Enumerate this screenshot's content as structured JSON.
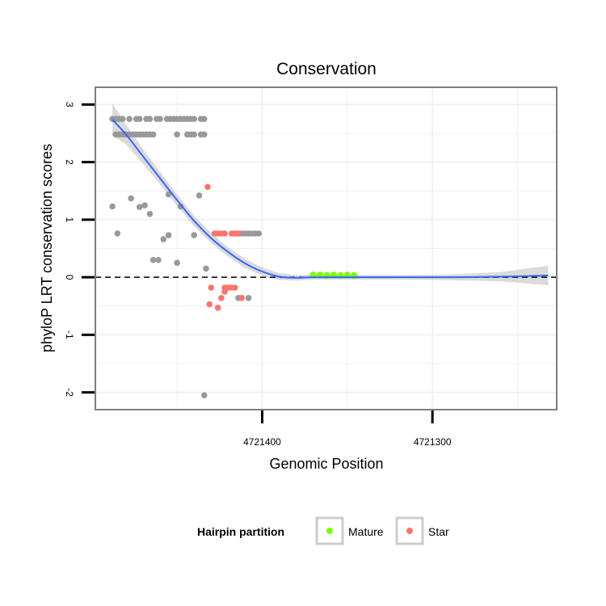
{
  "chart_data": {
    "type": "scatter",
    "title": "Conservation",
    "xlabel": "Genomic Position",
    "ylabel": "phyloP LRT conservation scores",
    "x_reversed": true,
    "xlim": [
      4721498,
      4721227
    ],
    "ylim": [
      -2.3,
      3.3
    ],
    "x_ticks": [
      4721400,
      4721300
    ],
    "x_tick_labels": [
      "4721400",
      "4721300"
    ],
    "y_ticks": [
      3,
      2,
      1,
      0,
      -1,
      -2
    ],
    "y_tick_labels": [
      "3",
      "2",
      "1",
      "0",
      "-1",
      "-2"
    ],
    "hline": {
      "y": 0,
      "style": "dashed",
      "color": "#000000"
    },
    "colors": {
      "other": "#999999",
      "Mature": "#7CFC00",
      "Star": "#F8766D",
      "smooth": "#3366FF",
      "ribbon": "#BDBDBD",
      "grid": "#F0F0F0",
      "panel_border": "#7F7F7F"
    },
    "legend": {
      "title": "Hairpin partition",
      "position": "bottom",
      "entries": [
        {
          "label": "Mature",
          "color": "#7CFC00"
        },
        {
          "label": "Star",
          "color": "#F8766D"
        }
      ]
    },
    "series": [
      {
        "name": "other",
        "points": [
          [
            4721488,
            2.75
          ],
          [
            4721486,
            2.75
          ],
          [
            4721484,
            2.75
          ],
          [
            4721482,
            2.75
          ],
          [
            4721478,
            2.75
          ],
          [
            4721474,
            2.75
          ],
          [
            4721472,
            2.75
          ],
          [
            4721468,
            2.75
          ],
          [
            4721466,
            2.75
          ],
          [
            4721462,
            2.75
          ],
          [
            4721460,
            2.75
          ],
          [
            4721456,
            2.75
          ],
          [
            4721454,
            2.75
          ],
          [
            4721452,
            2.75
          ],
          [
            4721450,
            2.75
          ],
          [
            4721448,
            2.75
          ],
          [
            4721446,
            2.75
          ],
          [
            4721444,
            2.75
          ],
          [
            4721442,
            2.75
          ],
          [
            4721440,
            2.75
          ],
          [
            4721436,
            2.75
          ],
          [
            4721434,
            2.75
          ],
          [
            4721486,
            2.48
          ],
          [
            4721484,
            2.48
          ],
          [
            4721482,
            2.48
          ],
          [
            4721480,
            2.48
          ],
          [
            4721478,
            2.48
          ],
          [
            4721476,
            2.48
          ],
          [
            4721474,
            2.48
          ],
          [
            4721472,
            2.48
          ],
          [
            4721470,
            2.48
          ],
          [
            4721468,
            2.48
          ],
          [
            4721466,
            2.48
          ],
          [
            4721464,
            2.48
          ],
          [
            4721450,
            2.48
          ],
          [
            4721444,
            2.48
          ],
          [
            4721442,
            2.48
          ],
          [
            4721440,
            2.48
          ],
          [
            4721436,
            2.48
          ],
          [
            4721434,
            2.48
          ],
          [
            4721477,
            1.37
          ],
          [
            4721488,
            1.23
          ],
          [
            4721472,
            1.22
          ],
          [
            4721469,
            1.25
          ],
          [
            4721466,
            1.1
          ],
          [
            4721455,
            1.44
          ],
          [
            4721448,
            1.23
          ],
          [
            4721437,
            1.42
          ],
          [
            4721485,
            0.76
          ],
          [
            4721455,
            0.73
          ],
          [
            4721458,
            0.66
          ],
          [
            4721440,
            0.73
          ],
          [
            4721464,
            0.3
          ],
          [
            4721461,
            0.3
          ],
          [
            4721450,
            0.25
          ],
          [
            4721433,
            0.15
          ],
          [
            4721416,
            0.76
          ],
          [
            4721414,
            0.76
          ],
          [
            4721412,
            0.76
          ],
          [
            4721410,
            0.76
          ],
          [
            4721408,
            0.76
          ],
          [
            4721406,
            0.76
          ],
          [
            4721404,
            0.76
          ],
          [
            4721402,
            0.76
          ],
          [
            4721414,
            -0.36
          ],
          [
            4721408,
            -0.36
          ],
          [
            4721434,
            -2.05
          ]
        ]
      },
      {
        "name": "Star",
        "points": [
          [
            4721432,
            1.57
          ],
          [
            4721428,
            0.76
          ],
          [
            4721426,
            0.76
          ],
          [
            4721424,
            0.76
          ],
          [
            4721422,
            0.76
          ],
          [
            4721418,
            0.76
          ],
          [
            4721416,
            0.76
          ],
          [
            4721414,
            0.76
          ],
          [
            4721430,
            -0.18
          ],
          [
            4721422,
            -0.18
          ],
          [
            4721420,
            -0.18
          ],
          [
            4721418,
            -0.18
          ],
          [
            4721416,
            -0.18
          ],
          [
            4721422,
            -0.25
          ],
          [
            4721424,
            -0.36
          ],
          [
            4721412,
            -0.36
          ],
          [
            4721431,
            -0.47
          ],
          [
            4721426,
            -0.53
          ]
        ]
      },
      {
        "name": "Mature",
        "points": [
          [
            4721370,
            0.04
          ],
          [
            4721366,
            0.04
          ],
          [
            4721362,
            0.03
          ],
          [
            4721358,
            0.04
          ],
          [
            4721354,
            0.03
          ],
          [
            4721350,
            0.04
          ],
          [
            4721346,
            0.03
          ]
        ]
      }
    ],
    "smooth": {
      "method": "loess",
      "x": [
        4721488,
        4721480,
        4721470,
        4721460,
        4721450,
        4721440,
        4721430,
        4721420,
        4721410,
        4721400,
        4721390,
        4721380,
        4721370,
        4721350,
        4721320,
        4721290,
        4721260,
        4721232
      ],
      "y": [
        2.74,
        2.48,
        2.1,
        1.72,
        1.34,
        0.98,
        0.68,
        0.44,
        0.24,
        0.1,
        0.01,
        -0.01,
        0.0,
        0.0,
        0.0,
        0.0,
        0.01,
        0.03
      ],
      "ci_half_width": [
        0.28,
        0.17,
        0.13,
        0.11,
        0.1,
        0.09,
        0.09,
        0.08,
        0.08,
        0.07,
        0.06,
        0.05,
        0.04,
        0.04,
        0.04,
        0.05,
        0.08,
        0.17
      ]
    }
  }
}
